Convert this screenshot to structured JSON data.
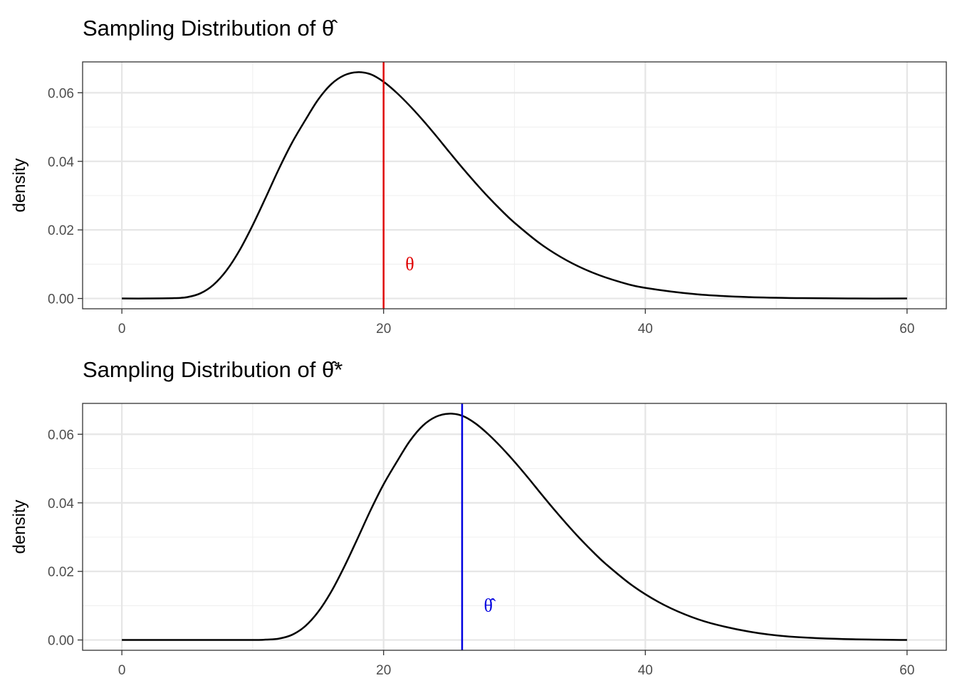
{
  "chart_data": [
    {
      "type": "line",
      "title": "Sampling Distribution of θ̂",
      "xlabel": "",
      "ylabel": "density",
      "xlim": [
        -3,
        63
      ],
      "ylim": [
        -0.003,
        0.069
      ],
      "x_ticks": [
        0,
        20,
        40,
        60
      ],
      "x_tick_labels": [
        "0",
        "20",
        "40",
        "60"
      ],
      "y_ticks": [
        0.0,
        0.02,
        0.04,
        0.06
      ],
      "y_tick_labels": [
        "0.00",
        "0.02",
        "0.04",
        "0.06"
      ],
      "grid": true,
      "series": [
        {
          "x": [
            0,
            2,
            4,
            5,
            6,
            7,
            8,
            9,
            10,
            11,
            12,
            13,
            14,
            15,
            16,
            17,
            18,
            19,
            20,
            21,
            22,
            23,
            24,
            25,
            26,
            27,
            28,
            29,
            30,
            32,
            34,
            36,
            38,
            40,
            44,
            48,
            52,
            56,
            60
          ],
          "y": [
            0.0,
            0.0,
            0.0001,
            0.0004,
            0.0015,
            0.004,
            0.0082,
            0.0141,
            0.0214,
            0.0295,
            0.0378,
            0.0454,
            0.0519,
            0.058,
            0.0625,
            0.0651,
            0.066,
            0.0654,
            0.0632,
            0.06,
            0.0562,
            0.052,
            0.0475,
            0.0428,
            0.0382,
            0.0338,
            0.0296,
            0.0257,
            0.0221,
            0.0159,
            0.0111,
            0.0075,
            0.0049,
            0.0031,
            0.0012,
            0.0004,
            0.0001,
            0.0,
            0.0
          ]
        }
      ],
      "vline": {
        "x": 20,
        "color": "#e00000"
      },
      "annotation": {
        "text": "θ",
        "x": 22,
        "y": 0.0095,
        "color": "#e00000"
      }
    },
    {
      "type": "line",
      "title": "Sampling Distribution of θ̂*",
      "xlabel": "",
      "ylabel": "density",
      "xlim": [
        -3,
        63
      ],
      "ylim": [
        -0.003,
        0.069
      ],
      "x_ticks": [
        0,
        20,
        40,
        60
      ],
      "x_tick_labels": [
        "0",
        "20",
        "40",
        "60"
      ],
      "y_ticks": [
        0.0,
        0.02,
        0.04,
        0.06
      ],
      "y_tick_labels": [
        "0.00",
        "0.02",
        "0.04",
        "0.06"
      ],
      "grid": true,
      "series": [
        {
          "x": [
            0,
            5,
            10,
            11,
            12,
            13,
            14,
            15,
            16,
            17,
            18,
            19,
            20,
            21,
            22,
            23,
            24,
            25,
            26,
            27,
            28,
            29,
            30,
            31,
            32,
            33,
            34,
            35,
            36,
            37,
            39,
            41,
            43,
            45,
            48,
            51,
            55,
            60
          ],
          "y": [
            0.0,
            0.0,
            0.0,
            0.0001,
            0.0004,
            0.0015,
            0.004,
            0.0082,
            0.0141,
            0.0214,
            0.0295,
            0.0378,
            0.0454,
            0.0519,
            0.058,
            0.0625,
            0.0651,
            0.066,
            0.0654,
            0.0632,
            0.06,
            0.0562,
            0.052,
            0.0475,
            0.0428,
            0.0382,
            0.0338,
            0.0296,
            0.0257,
            0.0221,
            0.0159,
            0.0111,
            0.0075,
            0.0049,
            0.0024,
            0.001,
            0.0003,
            0.0
          ]
        }
      ],
      "vline": {
        "x": 26,
        "color": "#0000e0"
      },
      "annotation": {
        "text": "θ̂",
        "x": 28,
        "y": 0.0095,
        "color": "#0000e0"
      }
    }
  ]
}
